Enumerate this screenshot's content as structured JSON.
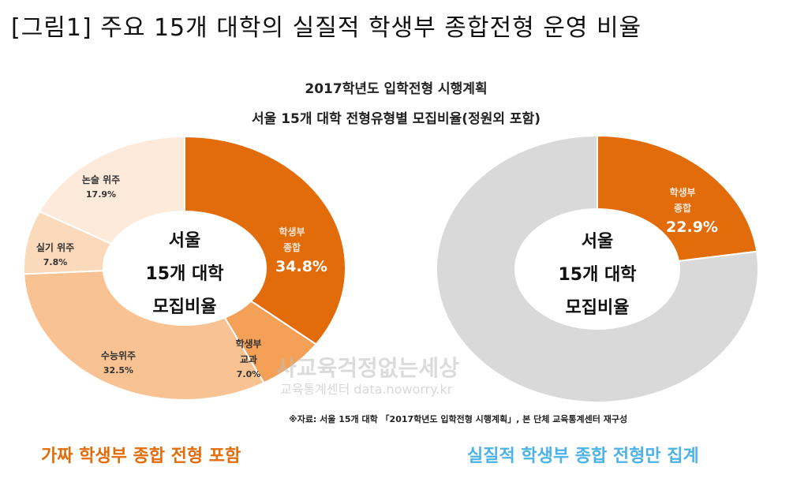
{
  "figure_title": "[그림1] 주요 15개 대학의 실질적 학생부 종합전형 운영 비율",
  "chart_title_line1": "2017학년도 입학전형 시행계획",
  "chart_title_line2": "서울 15개 대학 전형유형별 모집비율(정원외 포함)",
  "source_note": "※자료: 서울 15개 대학 「2017학년도 입학전형 시행계획」, 본 단체 교육통계센터 재구성",
  "watermark_line1": "사교육걱정없는세상",
  "watermark_line2": "교육통계센터 data.noworry.kr",
  "caption_left": "가짜 학생부 종합 전형 포함",
  "caption_right": "실질적  학생부 종합 전형만 집계",
  "colors": {
    "accent": "#e36c0a",
    "caption_right": "#4db3e6",
    "gray": "#d9d9d9"
  },
  "chart_data": [
    {
      "type": "pie",
      "variant": "donut",
      "center_label": [
        "서울",
        "15개 대학",
        "모집비율"
      ],
      "slices": [
        {
          "label": [
            "학생부",
            "종합"
          ],
          "value": 34.8,
          "value_label": "34.8%",
          "color": "#e36c0a"
        },
        {
          "label": [
            "학생부",
            "교과"
          ],
          "value": 7.0,
          "value_label": "7.0%",
          "color": "#f4a057"
        },
        {
          "label": [
            "수능위주"
          ],
          "value": 32.5,
          "value_label": "32.5%",
          "color": "#f9c292"
        },
        {
          "label": [
            "실기 위주"
          ],
          "value": 7.8,
          "value_label": "7.8%",
          "color": "#fbdabc"
        },
        {
          "label": [
            "논술 위주"
          ],
          "value": 17.9,
          "value_label": "17.9%",
          "color": "#fdeadb"
        }
      ]
    },
    {
      "type": "pie",
      "variant": "donut",
      "center_label": [
        "서울",
        "15개 대학",
        "모집비율"
      ],
      "slices": [
        {
          "label": [
            "학생부",
            "종합"
          ],
          "value": 22.9,
          "value_label": "22.9%",
          "color": "#e36c0a"
        },
        {
          "label": [],
          "value": 77.1,
          "value_label": "",
          "color": "#d9d9d9"
        }
      ]
    }
  ]
}
